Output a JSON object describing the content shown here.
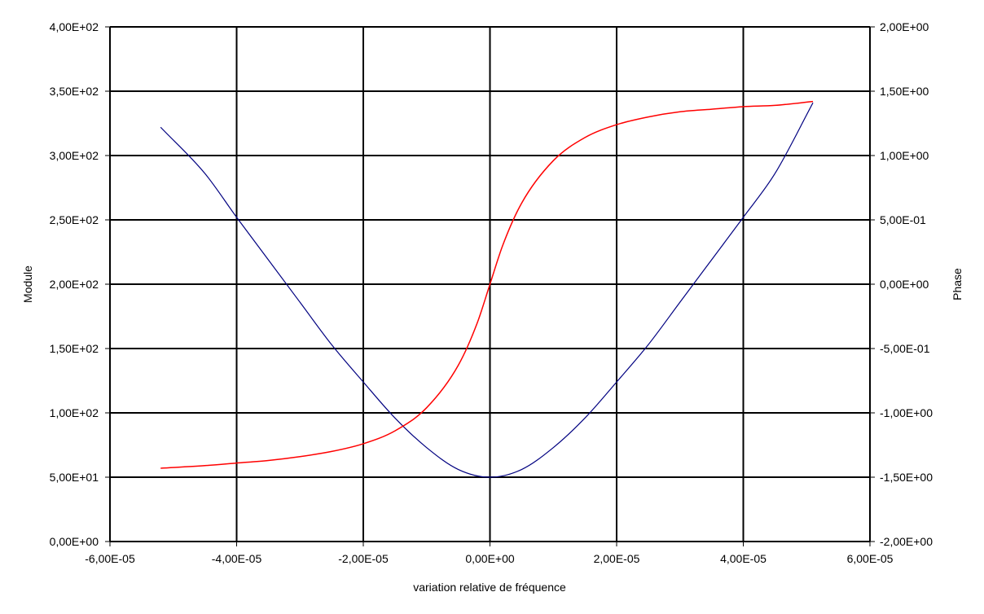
{
  "chart_data": {
    "type": "line",
    "title": "",
    "xlabel": "variation relative de fréquence",
    "ylabel": "Module",
    "y2label": "Phase",
    "xlim": [
      -6e-05,
      6e-05
    ],
    "ylim": [
      0,
      400
    ],
    "y2lim": [
      -2.0,
      2.0
    ],
    "grid": true,
    "legend": "none",
    "x_ticks": [
      "-6,00E-05",
      "-4,00E-05",
      "-2,00E-05",
      "0,00E+00",
      "2,00E-05",
      "4,00E-05",
      "6,00E-05"
    ],
    "y_ticks": [
      "0,00E+00",
      "5,00E+01",
      "1,00E+02",
      "1,50E+02",
      "2,00E+02",
      "2,50E+02",
      "3,00E+02",
      "3,50E+02",
      "4,00E+02"
    ],
    "y2_ticks": [
      "-2,00E+00",
      "-1,50E+00",
      "-1,00E+00",
      "-5,00E-01",
      "0,00E+00",
      "5,00E-01",
      "1,00E+00",
      "1,50E+00",
      "2,00E+00"
    ],
    "series": [
      {
        "axis": "left",
        "color": "#000080",
        "x": [
          -5.2e-05,
          -4.5e-05,
          -4e-05,
          -3.5e-05,
          -3e-05,
          -2.5e-05,
          -2e-05,
          -1.5e-05,
          -1e-05,
          -5e-06,
          0.0,
          5e-06,
          1e-05,
          1.5e-05,
          2e-05,
          2.5e-05,
          3e-05,
          3.5e-05,
          4e-05,
          4.5e-05,
          5.1e-05
        ],
        "values": [
          322,
          286,
          252,
          219,
          186,
          153,
          124,
          96,
          73,
          56,
          50,
          56,
          73,
          96,
          124,
          153,
          186,
          219,
          252,
          286,
          341
        ]
      },
      {
        "axis": "right",
        "color": "#ff0000",
        "x": [
          -5.2e-05,
          -4.5e-05,
          -4e-05,
          -3.5e-05,
          -3e-05,
          -2.5e-05,
          -2e-05,
          -1.5e-05,
          -1e-05,
          -5e-06,
          -2e-06,
          0.0,
          2e-06,
          5e-06,
          1e-05,
          1.5e-05,
          2e-05,
          2.5e-05,
          3e-05,
          3.5e-05,
          4e-05,
          4.5e-05,
          5.1e-05
        ],
        "values": [
          -1.43,
          -1.41,
          -1.39,
          -1.37,
          -1.34,
          -1.3,
          -1.24,
          -1.14,
          -0.96,
          -0.63,
          -0.3,
          0.0,
          0.3,
          0.63,
          0.96,
          1.14,
          1.24,
          1.3,
          1.34,
          1.36,
          1.38,
          1.39,
          1.42
        ]
      }
    ]
  }
}
